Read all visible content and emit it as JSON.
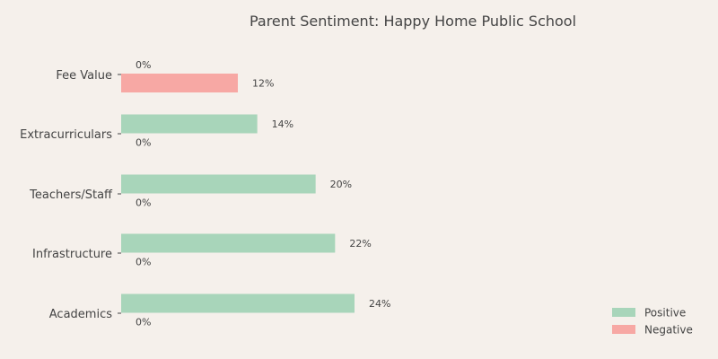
{
  "chart_data": {
    "type": "bar",
    "orientation": "horizontal",
    "title": "Parent Sentiment: Happy Home Public School",
    "categories": [
      "Fee Value",
      "Extracurriculars",
      "Teachers/Staff",
      "Infrastructure",
      "Academics"
    ],
    "series": [
      {
        "name": "Positive",
        "color": "#a8d5ba",
        "values": [
          0,
          14,
          20,
          22,
          24
        ]
      },
      {
        "name": "Negative",
        "color": "#f7a8a4",
        "values": [
          12,
          0,
          0,
          0,
          0
        ]
      }
    ],
    "value_suffix": "%",
    "xlim": [
      0,
      24
    ],
    "grid": false,
    "legend_position": "bottom-right"
  }
}
